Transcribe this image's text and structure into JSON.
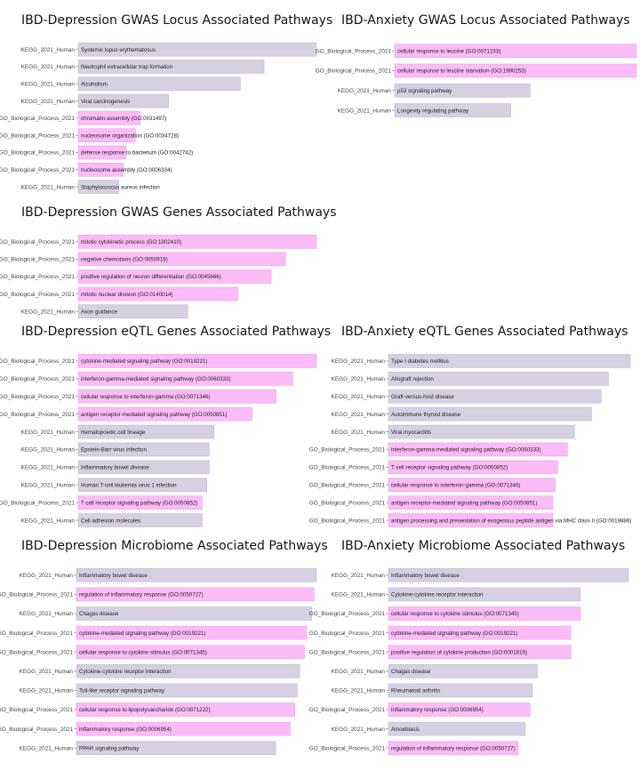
{
  "colors": {
    "kegg": "#d6d0e2",
    "go": "#fbbcf7",
    "kegg_edge": "#b9b2cc",
    "go_edge": "#f08fe9"
  },
  "chart_data": [
    {
      "type": "bar",
      "orientation": "horizontal",
      "title": "IBD-Depression GWAS Locus Associated Pathways",
      "xlabel": "",
      "ylabel": "",
      "bars": [
        {
          "category": "KEGG_2021_Human",
          "term": "Systemic lupus erythematosus",
          "value": 1.0
        },
        {
          "category": "KEGG_2021_Human",
          "term": "Neutrophil extracellular trap formation",
          "value": 0.78
        },
        {
          "category": "KEGG_2021_Human",
          "term": "Alcoholism",
          "value": 0.68
        },
        {
          "category": "KEGG_2021_Human",
          "term": "Viral carcinogenesis",
          "value": 0.38
        },
        {
          "category": "GO_Biological_Process_2021",
          "term": "chromatin assembly (GO:0031497)",
          "value": 0.26
        },
        {
          "category": "GO_Biological_Process_2021",
          "term": "nucleosome organization (GO:0034728)",
          "value": 0.24
        },
        {
          "category": "GO_Biological_Process_2021",
          "term": "defense response to bacterium (GO:0042742)",
          "value": 0.2
        },
        {
          "category": "GO_Biological_Process_2021",
          "term": "nucleosome assembly (GO:0006334)",
          "value": 0.19
        },
        {
          "category": "KEGG_2021_Human",
          "term": "Staphylococcus aureus infection",
          "value": 0.17
        }
      ]
    },
    {
      "type": "bar",
      "orientation": "horizontal",
      "title": "IBD-Anxiety GWAS Locus Associated Pathways",
      "xlabel": "",
      "ylabel": "",
      "bars": [
        {
          "category": "GO_Biological_Process_2021",
          "term": "cellular response to leucine (GO:0071233)",
          "value": 1.0
        },
        {
          "category": "GO_Biological_Process_2021",
          "term": "cellular response to leucine starvation (GO:1990253)",
          "value": 1.0
        },
        {
          "category": "KEGG_2021_Human",
          "term": "p53 signaling pathway",
          "value": 0.56
        },
        {
          "category": "KEGG_2021_Human",
          "term": "Longevity regulating pathway",
          "value": 0.48
        }
      ]
    },
    {
      "type": "bar",
      "orientation": "horizontal",
      "title": "IBD-Depression GWAS Genes Associated Pathways",
      "xlabel": "",
      "ylabel": "",
      "bars": [
        {
          "category": "GO_Biological_Process_2021",
          "term": "mitotic cytokinetic process (GO:1902410)",
          "value": 1.0
        },
        {
          "category": "GO_Biological_Process_2021",
          "term": "negative chemotaxis (GO:0050919)",
          "value": 0.87
        },
        {
          "category": "GO_Biological_Process_2021",
          "term": "positive regulation of neuron differentiation (GO:0045666)",
          "value": 0.81
        },
        {
          "category": "GO_Biological_Process_2021",
          "term": "mitotic nuclear division (GO:0140014)",
          "value": 0.67
        },
        {
          "category": "KEGG_2021_Human",
          "term": "Axon guidance",
          "value": 0.46
        }
      ]
    },
    {
      "type": "bar",
      "orientation": "horizontal",
      "title": "IBD-Depression eQTL Genes Associated Pathways",
      "xlabel": "",
      "ylabel": "",
      "bars": [
        {
          "category": "GO_Biological_Process_2021",
          "term": "cytokine-mediated signaling pathway (GO:0019221)",
          "value": 1.0
        },
        {
          "category": "GO_Biological_Process_2021",
          "term": "interferon-gamma-mediated signaling pathway (GO:0060333)",
          "value": 0.9
        },
        {
          "category": "GO_Biological_Process_2021",
          "term": "cellular response to interferon-gamma (GO:0071346)",
          "value": 0.83
        },
        {
          "category": "GO_Biological_Process_2021",
          "term": "antigen receptor-mediated signaling pathway (GO:0050851)",
          "value": 0.73
        },
        {
          "category": "KEGG_2021_Human",
          "term": "Hematopoietic cell lineage",
          "value": 0.57
        },
        {
          "category": "KEGG_2021_Human",
          "term": "Epstein-Barr virus infection",
          "value": 0.55
        },
        {
          "category": "KEGG_2021_Human",
          "term": "Inflammatory bowel disease",
          "value": 0.55
        },
        {
          "category": "KEGG_2021_Human",
          "term": "Human T-cell leukemia virus 1 infection",
          "value": 0.54
        },
        {
          "category": "GO_Biological_Process_2021",
          "term": "T cell receptor signaling pathway (GO:0050852)",
          "value": 0.52
        },
        {
          "category": "KEGG_2021_Human",
          "term": "Cell adhesion molecules",
          "value": 0.52
        }
      ]
    },
    {
      "type": "bar",
      "orientation": "horizontal",
      "title": "IBD-Anxiety eQTL Genes Associated Pathways",
      "xlabel": "",
      "ylabel": "",
      "bars": [
        {
          "category": "KEGG_2021_Human",
          "term": "Type I diabetes mellitus",
          "value": 1.0
        },
        {
          "category": "KEGG_2021_Human",
          "term": "Allograft rejection",
          "value": 0.91
        },
        {
          "category": "KEGG_2021_Human",
          "term": "Graft-versus-host disease",
          "value": 0.88
        },
        {
          "category": "KEGG_2021_Human",
          "term": "Autoimmune thyroid disease",
          "value": 0.84
        },
        {
          "category": "KEGG_2021_Human",
          "term": "Viral myocarditis",
          "value": 0.77
        },
        {
          "category": "GO_Biological_Process_2021",
          "term": "interferon-gamma-mediated signaling pathway (GO:0060333)",
          "value": 0.74
        },
        {
          "category": "GO_Biological_Process_2021",
          "term": "T cell receptor signaling pathway (GO:0050852)",
          "value": 0.7
        },
        {
          "category": "GO_Biological_Process_2021",
          "term": "cellular response to interferon-gamma (GO:0071346)",
          "value": 0.69
        },
        {
          "category": "GO_Biological_Process_2021",
          "term": "antigen receptor-mediated signaling pathway (GO:0050851)",
          "value": 0.68
        },
        {
          "category": "GO_Biological_Process_2021",
          "term": "antigen processing and presentation of exogenous peptide antigen via MHC class II (GO:0019886)",
          "value": 0.68
        }
      ]
    },
    {
      "type": "bar",
      "orientation": "horizontal",
      "title": "IBD-Depression Microbiome Associated Pathways",
      "xlabel": "",
      "ylabel": "",
      "bars": [
        {
          "category": "KEGG_2021_Human",
          "term": "Inflammatory bowel disease",
          "value": 1.0
        },
        {
          "category": "GO_Biological_Process_2021",
          "term": "regulation of inflammatory response (GO:0050727)",
          "value": 0.99
        },
        {
          "category": "KEGG_2021_Human",
          "term": "Chagas disease",
          "value": 0.98
        },
        {
          "category": "GO_Biological_Process_2021",
          "term": "cytokine-mediated signaling pathway (GO:0019221)",
          "value": 0.96
        },
        {
          "category": "GO_Biological_Process_2021",
          "term": "cellular response to cytokine stimulus (GO:0071345)",
          "value": 0.95
        },
        {
          "category": "KEGG_2021_Human",
          "term": "Cytokine-cytokine receptor interaction",
          "value": 0.93
        },
        {
          "category": "KEGG_2021_Human",
          "term": "Toll-like receptor signaling pathway",
          "value": 0.92
        },
        {
          "category": "GO_Biological_Process_2021",
          "term": "cellular response to lipopolysaccharide (GO:0071222)",
          "value": 0.91
        },
        {
          "category": "GO_Biological_Process_2021",
          "term": "inflammatory response (GO:0006954)",
          "value": 0.89
        },
        {
          "category": "KEGG_2021_Human",
          "term": "PPAR signaling pathway",
          "value": 0.83
        }
      ]
    },
    {
      "type": "bar",
      "orientation": "horizontal",
      "title": "IBD-Anxiety Microbiome Associated Pathways",
      "xlabel": "",
      "ylabel": "",
      "bars": [
        {
          "category": "KEGG_2021_Human",
          "term": "Inflammatory bowel disease",
          "value": 1.0
        },
        {
          "category": "KEGG_2021_Human",
          "term": "Cytokine-cytokine receptor interaction",
          "value": 0.8
        },
        {
          "category": "GO_Biological_Process_2021",
          "term": "cellular response to cytokine stimulus (GO:0071345)",
          "value": 0.8
        },
        {
          "category": "GO_Biological_Process_2021",
          "term": "cytokine-mediated signaling pathway (GO:0019221)",
          "value": 0.76
        },
        {
          "category": "GO_Biological_Process_2021",
          "term": "positive regulation of cytokine production (GO:0001819)",
          "value": 0.76
        },
        {
          "category": "KEGG_2021_Human",
          "term": "Chagas disease",
          "value": 0.62
        },
        {
          "category": "KEGG_2021_Human",
          "term": "Rheumatoid arthritis",
          "value": 0.6
        },
        {
          "category": "GO_Biological_Process_2021",
          "term": "inflammatory response (GO:0006954)",
          "value": 0.59
        },
        {
          "category": "KEGG_2021_Human",
          "term": "Amoebiasis",
          "value": 0.57
        },
        {
          "category": "GO_Biological_Process_2021",
          "term": "regulation of inflammatory response (GO:0050727)",
          "value": 0.54
        }
      ]
    }
  ]
}
